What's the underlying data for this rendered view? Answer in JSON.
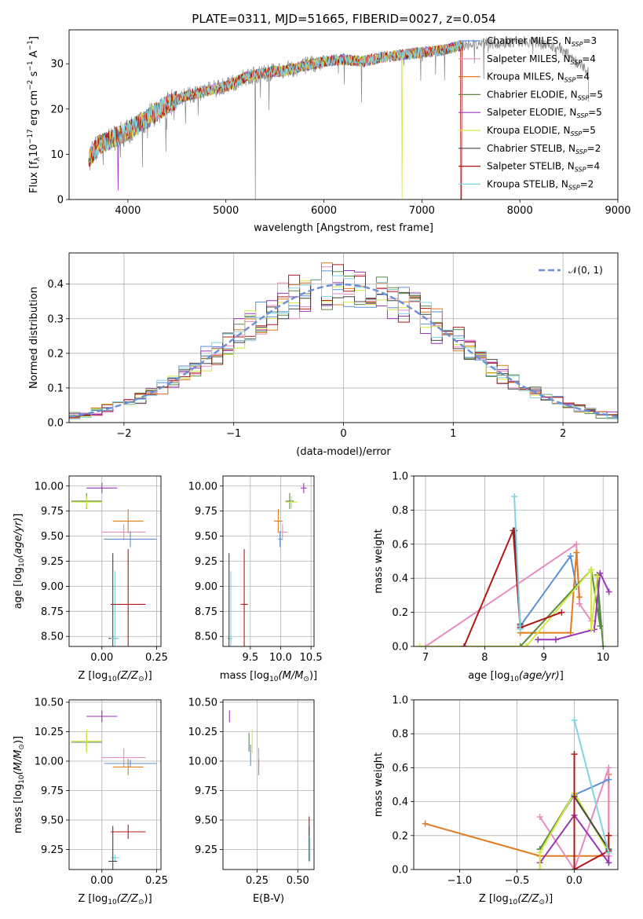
{
  "figure": {
    "title": "PLATE=0311, MJD=51665, FIBERID=0027, z=0.054"
  },
  "colors": {
    "chabrier_miles": "#5b8fd8",
    "salpeter_miles": "#e88cc0",
    "kroupa_miles": "#e07b20",
    "chabrier_elodie": "#5a8a40",
    "salpeter_elodie": "#9a35b8",
    "kroupa_elodie": "#d4e840",
    "chabrier_stelib": "#444444",
    "salpeter_stelib": "#b01818",
    "kroupa_stelib": "#80d4e0",
    "data": "#888888",
    "normal": "#6a90d8"
  },
  "chart_data": [
    {
      "type": "line",
      "id": "spectrum",
      "xlabel": "wavelength [Angstrom, rest frame]",
      "ylabel": "Flux [f",
      "ylabel_parts": {
        "lambda": "λ",
        "ten": "10",
        "exp1": "−17",
        "rest": " erg cm",
        "exp2": "−2",
        "s": " s",
        "exp3": "−1",
        "A": " A",
        "exp4": "−1",
        "close": "]"
      },
      "xlim": [
        3400,
        9000
      ],
      "ylim": [
        0,
        37.5
      ],
      "xticks": [
        4000,
        5000,
        6000,
        7000,
        8000,
        9000
      ],
      "yticks": [
        0,
        10,
        20,
        30
      ],
      "grid": false,
      "legend_position": "upper-right",
      "continuum": {
        "x": [
          3600,
          3700,
          3800,
          3900,
          4000,
          4200,
          4400,
          4600,
          4800,
          5000,
          5200,
          5400,
          5600,
          5800,
          6000,
          6200,
          6400,
          6600,
          6800,
          7000,
          7200,
          7400,
          7600,
          7800,
          8000,
          8200,
          8400,
          8600,
          8700
        ],
        "y": [
          9,
          12,
          13,
          14,
          15,
          18,
          21,
          23,
          24,
          25,
          27,
          28,
          28.5,
          29.5,
          30.5,
          31,
          30.5,
          31.5,
          32,
          32.5,
          33,
          34,
          34.5,
          34.5,
          35,
          34.5,
          33.5,
          30,
          28
        ]
      },
      "series": [
        {
          "name": "Chabrier MILES",
          "nssp": "3",
          "color_key": "chabrier_miles"
        },
        {
          "name": "Salpeter MILES",
          "nssp": "4",
          "color_key": "salpeter_miles"
        },
        {
          "name": "Kroupa MILES",
          "nssp": "4",
          "color_key": "kroupa_miles"
        },
        {
          "name": "Chabrier ELODIE",
          "nssp": "5",
          "color_key": "chabrier_elodie"
        },
        {
          "name": "Salpeter ELODIE",
          "nssp": "5",
          "color_key": "salpeter_elodie"
        },
        {
          "name": "Kroupa ELODIE",
          "nssp": "5",
          "color_key": "kroupa_elodie"
        },
        {
          "name": "Chabrier STELIB",
          "nssp": "2",
          "color_key": "chabrier_stelib"
        },
        {
          "name": "Salpeter STELIB",
          "nssp": "4",
          "color_key": "salpeter_stelib"
        },
        {
          "name": "Kroupa STELIB",
          "nssp": "2",
          "color_key": "kroupa_stelib"
        }
      ],
      "legend_prefix": "N",
      "legend_sub": "SSP",
      "legend_eq": "="
    },
    {
      "type": "step",
      "id": "residuals",
      "xlabel": "(data-model)/error",
      "ylabel": "Normed distribution",
      "xlim": [
        -2.5,
        2.5
      ],
      "ylim": [
        0,
        0.49
      ],
      "xticks": [
        -2,
        -1,
        0,
        1,
        2
      ],
      "yticks": [
        0.0,
        0.1,
        0.2,
        0.3,
        0.4
      ],
      "grid": true,
      "legend_position": "upper-right",
      "normal_label": "𝒩(0, 1)",
      "bin_width": 0.1
    },
    {
      "type": "errorbar",
      "id": "age_vs_Z",
      "xlabel": "Z [log",
      "xlabel_parts": {
        "sub": "10",
        "expr": "(Z/Z",
        "sun": "⊙",
        "close": ")]"
      },
      "ylabel": "age  [log",
      "ylabel_parts": {
        "sub": "10",
        "expr": "(age/yr)",
        "close": "]"
      },
      "xlim": [
        -0.15,
        0.27
      ],
      "ylim": [
        8.4,
        10.1
      ],
      "xticks": [
        0.0,
        0.25
      ],
      "xtick_labels": [
        "0.00",
        "0.25"
      ],
      "yticks": [
        8.5,
        8.75,
        9.0,
        9.25,
        9.5,
        9.75,
        10.0
      ],
      "ytick_labels": [
        "8.50",
        "8.75",
        "9.00",
        "9.25",
        "9.50",
        "9.75",
        "10.00"
      ],
      "grid": true,
      "points": [
        {
          "k": "salpeter_elodie",
          "x": 0.0,
          "y": 9.98,
          "xe": 0.07,
          "ye": 0.05
        },
        {
          "k": "chabrier_elodie",
          "x": -0.07,
          "y": 9.85,
          "xe": 0.07,
          "ye": 0.08
        },
        {
          "k": "kroupa_elodie",
          "x": -0.07,
          "y": 9.84,
          "xe": 0.07,
          "ye": 0.06
        },
        {
          "k": "kroupa_miles",
          "x": 0.12,
          "y": 9.65,
          "xe": 0.07,
          "ye": 0.12
        },
        {
          "k": "salpeter_miles",
          "x": 0.1,
          "y": 9.54,
          "xe": 0.1,
          "ye": 0.08
        },
        {
          "k": "chabrier_miles",
          "x": 0.13,
          "y": 9.47,
          "xe": 0.12,
          "ye": 0.08
        },
        {
          "k": "chabrier_stelib",
          "x": 0.05,
          "y": 8.48,
          "xe": 0.02,
          "ye": 0.85
        },
        {
          "k": "kroupa_stelib",
          "x": 0.06,
          "y": 8.48,
          "xe": 0.02,
          "ye": 0.67
        },
        {
          "k": "salpeter_stelib",
          "x": 0.12,
          "y": 8.82,
          "xe": 0.08,
          "ye": 0.55
        }
      ]
    },
    {
      "type": "errorbar",
      "id": "age_vs_mass",
      "xlabel": "mass [log",
      "xlabel_parts": {
        "sub": "10",
        "expr": "(M/M",
        "sun": "⊙",
        "close": ")]"
      },
      "xlim": [
        9.05,
        10.55
      ],
      "ylim": [
        8.4,
        10.1
      ],
      "xticks": [
        9.5,
        10.0,
        10.5
      ],
      "xtick_labels": [
        "9.5",
        "10.0",
        "10.5"
      ],
      "yticks": [
        8.5,
        8.75,
        9.0,
        9.25,
        9.5,
        9.75,
        10.0
      ],
      "ytick_labels": [
        "8.50",
        "8.75",
        "9.00",
        "9.25",
        "9.50",
        "9.75",
        "10.00"
      ],
      "grid": true,
      "points": [
        {
          "k": "salpeter_elodie",
          "x": 10.38,
          "y": 9.98,
          "xe": 0.05,
          "ye": 0.05
        },
        {
          "k": "chabrier_elodie",
          "x": 10.15,
          "y": 9.85,
          "xe": 0.07,
          "ye": 0.08
        },
        {
          "k": "kroupa_elodie",
          "x": 10.18,
          "y": 9.84,
          "xe": 0.1,
          "ye": 0.06
        },
        {
          "k": "kroupa_miles",
          "x": 9.96,
          "y": 9.65,
          "xe": 0.07,
          "ye": 0.12
        },
        {
          "k": "salpeter_miles",
          "x": 10.03,
          "y": 9.54,
          "xe": 0.08,
          "ye": 0.08
        },
        {
          "k": "chabrier_miles",
          "x": 9.99,
          "y": 9.47,
          "xe": 0.03,
          "ye": 0.08
        },
        {
          "k": "chabrier_stelib",
          "x": 9.15,
          "y": 8.48,
          "xe": 0.02,
          "ye": 0.85
        },
        {
          "k": "kroupa_stelib",
          "x": 9.18,
          "y": 8.48,
          "xe": 0.03,
          "ye": 0.67
        },
        {
          "k": "salpeter_stelib",
          "x": 9.4,
          "y": 8.82,
          "xe": 0.06,
          "ye": 0.55
        }
      ]
    },
    {
      "type": "line",
      "id": "mass_weight_vs_age",
      "xlabel": "age  [log",
      "xlabel_parts": {
        "sub": "10",
        "expr": "(age/yr)",
        "close": "]"
      },
      "ylabel": "mass weight",
      "xlim": [
        6.8,
        10.25
      ],
      "ylim": [
        0,
        1.0
      ],
      "xticks": [
        7,
        8,
        9,
        10
      ],
      "yticks": [
        0.0,
        0.2,
        0.4,
        0.6,
        0.8,
        1.0
      ],
      "ytick_labels": [
        "0.0",
        "0.2",
        "0.4",
        "0.6",
        "0.8",
        "1.0"
      ],
      "grid": true,
      "series": [
        {
          "k": "chabrier_miles",
          "x": [
            8.6,
            9.45,
            9.55
          ],
          "y": [
            0.12,
            0.53,
            0.35
          ]
        },
        {
          "k": "salpeter_miles",
          "x": [
            7.0,
            9.55,
            9.6,
            9.8
          ],
          "y": [
            0.0,
            0.6,
            0.25,
            0.15
          ]
        },
        {
          "k": "kroupa_miles",
          "x": [
            8.6,
            9.45,
            9.55,
            9.6
          ],
          "y": [
            0.08,
            0.08,
            0.55,
            0.29
          ]
        },
        {
          "k": "chabrier_elodie",
          "x": [
            8.6,
            9.8,
            9.95,
            9.9,
            10.0
          ],
          "y": [
            0.0,
            0.45,
            0.12,
            0.42,
            0.0
          ]
        },
        {
          "k": "salpeter_elodie",
          "x": [
            8.9,
            9.2,
            9.85,
            9.95,
            10.1
          ],
          "y": [
            0.04,
            0.04,
            0.1,
            0.43,
            0.32
          ]
        },
        {
          "k": "kroupa_elodie",
          "x": [
            6.9,
            8.7,
            9.8,
            9.8,
            9.9
          ],
          "y": [
            0.0,
            0.0,
            0.45,
            0.1,
            0.41
          ]
        },
        {
          "k": "chabrier_stelib",
          "x": [
            8.5,
            8.6
          ],
          "y": [
            0.68,
            0.13
          ]
        },
        {
          "k": "salpeter_stelib",
          "x": [
            7.65,
            8.48,
            8.6,
            9.3
          ],
          "y": [
            0.0,
            0.68,
            0.11,
            0.2
          ]
        },
        {
          "k": "kroupa_stelib",
          "x": [
            8.5,
            8.6
          ],
          "y": [
            0.88,
            0.1
          ]
        }
      ]
    },
    {
      "type": "errorbar",
      "id": "mass_vs_Z",
      "xlabel": "Z [log",
      "xlabel_parts": {
        "sub": "10",
        "expr": "(Z/Z",
        "sun": "⊙",
        "close": ")]"
      },
      "ylabel": "mass [log",
      "ylabel_parts": {
        "sub": "10",
        "expr": "(M/M",
        "sun": "⊙",
        "close": ")]"
      },
      "xlim": [
        -0.15,
        0.27
      ],
      "ylim": [
        9.08,
        10.52
      ],
      "xticks": [
        0.0,
        0.25
      ],
      "xtick_labels": [
        "0.00",
        "0.25"
      ],
      "yticks": [
        9.25,
        9.5,
        9.75,
        10.0,
        10.25,
        10.5
      ],
      "ytick_labels": [
        "9.25",
        "9.50",
        "9.75",
        "10.00",
        "10.25",
        "10.50"
      ],
      "grid": true,
      "points": [
        {
          "k": "salpeter_elodie",
          "x": 0.0,
          "y": 10.38,
          "xe": 0.07,
          "ye": 0.05
        },
        {
          "k": "chabrier_elodie",
          "x": -0.07,
          "y": 10.16,
          "xe": 0.07,
          "ye": 0.08
        },
        {
          "k": "kroupa_elodie",
          "x": -0.07,
          "y": 10.17,
          "xe": 0.07,
          "ye": 0.1
        },
        {
          "k": "salpeter_miles",
          "x": 0.1,
          "y": 10.03,
          "xe": 0.1,
          "ye": 0.08
        },
        {
          "k": "chabrier_miles",
          "x": 0.13,
          "y": 9.98,
          "xe": 0.12,
          "ye": 0.03
        },
        {
          "k": "kroupa_miles",
          "x": 0.12,
          "y": 9.95,
          "xe": 0.07,
          "ye": 0.07
        },
        {
          "k": "salpeter_stelib",
          "x": 0.12,
          "y": 9.4,
          "xe": 0.08,
          "ye": 0.06
        },
        {
          "k": "kroupa_stelib",
          "x": 0.06,
          "y": 9.18,
          "xe": 0.02,
          "ye": 0.03
        },
        {
          "k": "chabrier_stelib",
          "x": 0.05,
          "y": 9.15,
          "xe": 0.02,
          "ye": 0.3
        }
      ]
    },
    {
      "type": "errorbar",
      "id": "mass_vs_EBV",
      "xlabel": "E(B-V)",
      "xlim": [
        0.04,
        0.6
      ],
      "ylim": [
        9.08,
        10.52
      ],
      "xticks": [
        0.25,
        0.5
      ],
      "xtick_labels": [
        "0.25",
        "0.50"
      ],
      "yticks": [
        9.25,
        9.5,
        9.75,
        10.0,
        10.25,
        10.5
      ],
      "ytick_labels": [
        "9.25",
        "9.50",
        "9.75",
        "10.00",
        "10.25",
        "10.50"
      ],
      "grid": true,
      "points": [
        {
          "k": "salpeter_elodie",
          "x": 0.08,
          "y": 10.38,
          "xe": 0.0,
          "ye": 0.05
        },
        {
          "k": "chabrier_elodie",
          "x": 0.2,
          "y": 10.16,
          "xe": 0.0,
          "ye": 0.08
        },
        {
          "k": "kroupa_elodie",
          "x": 0.22,
          "y": 10.17,
          "xe": 0.0,
          "ye": 0.1
        },
        {
          "k": "chabrier_miles",
          "x": 0.21,
          "y": 10.05,
          "xe": 0.0,
          "ye": 0.09
        },
        {
          "k": "salpeter_miles",
          "x": 0.26,
          "y": 10.03,
          "xe": 0.0,
          "ye": 0.08
        },
        {
          "k": "kroupa_miles",
          "x": 0.26,
          "y": 9.95,
          "xe": 0.0,
          "ye": 0.07
        },
        {
          "k": "salpeter_stelib",
          "x": 0.57,
          "y": 9.45,
          "xe": 0.0,
          "ye": 0.08
        },
        {
          "k": "chabrier_stelib",
          "x": 0.57,
          "y": 9.3,
          "xe": 0.0,
          "ye": 0.15
        },
        {
          "k": "kroupa_stelib",
          "x": 0.575,
          "y": 9.25,
          "xe": 0.0,
          "ye": 0.1
        }
      ]
    },
    {
      "type": "line",
      "id": "mass_weight_vs_Z",
      "xlabel": "Z [log",
      "xlabel_parts": {
        "sub": "10",
        "expr": "(Z/Z",
        "sun": "⊙",
        "close": ")]"
      },
      "ylabel": "mass weight",
      "xlim": [
        -1.4,
        0.38
      ],
      "ylim": [
        0,
        1.0
      ],
      "xticks": [
        -1.0,
        -0.5,
        0.0
      ],
      "xtick_labels": [
        "−1.0",
        "−0.5",
        "0.0"
      ],
      "yticks": [
        0.0,
        0.2,
        0.4,
        0.6,
        0.8,
        1.0
      ],
      "ytick_labels": [
        "0.0",
        "0.2",
        "0.4",
        "0.6",
        "0.8",
        "1.0"
      ],
      "grid": true,
      "series": [
        {
          "k": "kroupa_miles",
          "x": [
            -1.3,
            -0.3,
            0.3,
            0.3,
            0.3
          ],
          "y": [
            0.27,
            0.08,
            0.08,
            0.56,
            0.08
          ]
        },
        {
          "k": "salpeter_miles",
          "x": [
            -0.3,
            0.0,
            0.3,
            0.3
          ],
          "y": [
            0.31,
            0.0,
            0.6,
            0.08
          ]
        },
        {
          "k": "chabrier_miles",
          "x": [
            -0.3,
            0.0,
            0.3
          ],
          "y": [
            0.12,
            0.44,
            0.53
          ]
        },
        {
          "k": "chabrier_elodie",
          "x": [
            -0.3,
            0.0,
            0.3
          ],
          "y": [
            0.12,
            0.45,
            0.1
          ]
        },
        {
          "k": "salpeter_elodie",
          "x": [
            -0.3,
            0.0,
            0.3,
            0.3
          ],
          "y": [
            0.04,
            0.32,
            0.04,
            0.1
          ]
        },
        {
          "k": "kroupa_elodie",
          "x": [
            -0.3,
            -0.3,
            0.0,
            0.3
          ],
          "y": [
            0.0,
            0.1,
            0.45,
            0.1
          ]
        },
        {
          "k": "chabrier_stelib",
          "x": [
            0.0,
            0.3
          ],
          "y": [
            0.43,
            0.12
          ]
        },
        {
          "k": "salpeter_stelib",
          "x": [
            0.0,
            0.0,
            0.3,
            0.3
          ],
          "y": [
            0.68,
            0.0,
            0.11,
            0.2
          ]
        },
        {
          "k": "kroupa_stelib",
          "x": [
            0.0,
            0.3
          ],
          "y": [
            0.88,
            0.1
          ]
        }
      ]
    }
  ]
}
